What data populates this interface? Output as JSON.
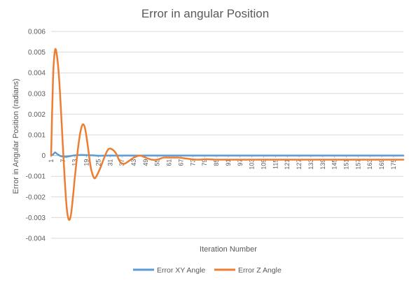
{
  "chart_data": {
    "type": "line",
    "title": "Error in angular Position",
    "xlabel": "Iteration Number",
    "ylabel": "Error in Angular Position (radians)",
    "ylim": [
      -0.004,
      0.006
    ],
    "xlim": [
      1,
      180
    ],
    "y_ticks": [
      "0.006",
      "0.005",
      "0.004",
      "0.003",
      "0.002",
      "0.001",
      "0",
      "-0.001",
      "-0.002",
      "-0.003",
      "-0.004"
    ],
    "x_ticks": [
      "1",
      "7",
      "13",
      "19",
      "25",
      "31",
      "37",
      "43",
      "49",
      "55",
      "61",
      "67",
      "73",
      "79",
      "85",
      "91",
      "97",
      "103",
      "109",
      "115",
      "121",
      "127",
      "133",
      "139",
      "145",
      "151",
      "157",
      "163",
      "169",
      "175"
    ],
    "grid": true,
    "legend_position": "bottom",
    "series": [
      {
        "name": "Error XY Angle",
        "color": "#5B9BD5",
        "points": [
          [
            1,
            0
          ],
          [
            2,
            5e-05
          ],
          [
            3,
            0.00015
          ],
          [
            4,
            8e-05
          ],
          [
            5,
            2e-05
          ],
          [
            6,
            -3e-05
          ],
          [
            8,
            -6e-05
          ],
          [
            10,
            -4e-05
          ],
          [
            13,
            1e-05
          ],
          [
            16,
            3e-05
          ],
          [
            19,
            2e-05
          ],
          [
            22,
            1e-05
          ],
          [
            25,
            -1e-05
          ],
          [
            30,
            0
          ],
          [
            40,
            0
          ],
          [
            60,
            0
          ],
          [
            90,
            0
          ],
          [
            120,
            0
          ],
          [
            150,
            0
          ],
          [
            180,
            0
          ]
        ]
      },
      {
        "name": "Error Z Angle",
        "color": "#ED7D31",
        "points": [
          [
            1,
            0
          ],
          [
            2,
            0.0038
          ],
          [
            3,
            0.0051
          ],
          [
            4,
            0.0048
          ],
          [
            5,
            0.0038
          ],
          [
            6,
            0.0022
          ],
          [
            7,
            0.0004
          ],
          [
            8,
            -0.0013
          ],
          [
            9,
            -0.0026
          ],
          [
            10,
            -0.0031
          ],
          [
            11,
            -0.0029
          ],
          [
            12,
            -0.0021
          ],
          [
            13,
            -0.0011
          ],
          [
            14,
            -0.0002
          ],
          [
            15,
            0.0006
          ],
          [
            16,
            0.0012
          ],
          [
            17,
            0.0015
          ],
          [
            18,
            0.0014
          ],
          [
            19,
            0.0009
          ],
          [
            20,
            0.0002
          ],
          [
            21,
            -0.0005
          ],
          [
            22,
            -0.0009
          ],
          [
            23,
            -0.0011
          ],
          [
            24,
            -0.001
          ],
          [
            26,
            -0.0006
          ],
          [
            28,
            -0.0001
          ],
          [
            30,
            0.0003
          ],
          [
            32,
            0.0003
          ],
          [
            34,
            0.0001
          ],
          [
            36,
            -0.0003
          ],
          [
            38,
            -0.0004
          ],
          [
            40,
            -0.0003
          ],
          [
            43,
            -0.0001
          ],
          [
            46,
            0
          ],
          [
            49,
            -0.0001
          ],
          [
            52,
            -0.0002
          ],
          [
            55,
            -0.0002
          ],
          [
            58,
            -0.0001
          ],
          [
            62,
            -0.0001
          ],
          [
            66,
            -0.0001
          ],
          [
            70,
            -0.00015
          ],
          [
            75,
            -0.0002
          ],
          [
            80,
            -0.00018
          ],
          [
            85,
            -0.0002
          ],
          [
            90,
            -0.0002
          ],
          [
            100,
            -0.0002
          ],
          [
            120,
            -0.0002
          ],
          [
            140,
            -0.0002
          ],
          [
            160,
            -0.0002
          ],
          [
            180,
            -0.0002
          ]
        ]
      }
    ]
  }
}
